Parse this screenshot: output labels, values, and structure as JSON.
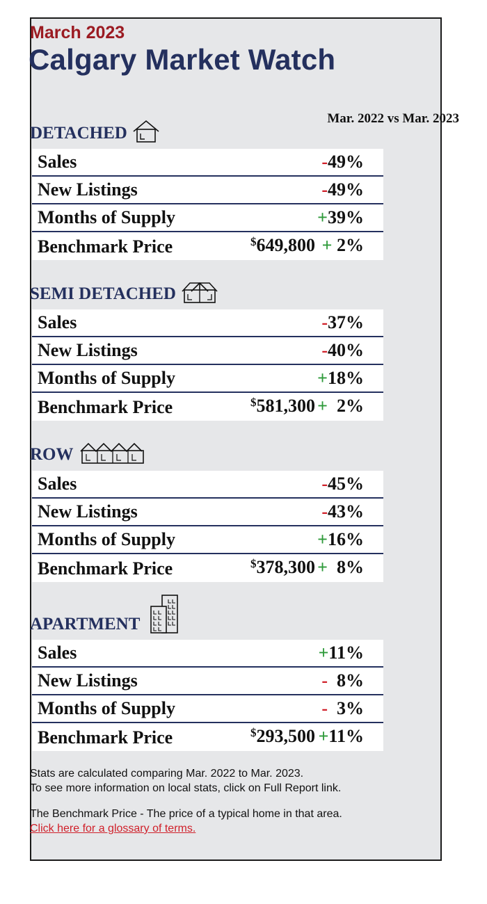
{
  "header": {
    "month": "March 2023",
    "title": "Calgary Market Watch"
  },
  "compare_label": "Mar. 2022 vs Mar. 2023",
  "sections": [
    {
      "name": "DETACHED",
      "icon": "house-icon",
      "rows": [
        {
          "label": "Sales",
          "sign": "-",
          "value": "49%"
        },
        {
          "label": "New Listings",
          "sign": "-",
          "value": "49%"
        },
        {
          "label": "Months of Supply",
          "sign": "+",
          "value": "39%"
        },
        {
          "label": "Benchmark Price",
          "price_symbol": "$",
          "price": "649,800",
          "sign": "+",
          "value": " 2%"
        }
      ]
    },
    {
      "name": "SEMI DETACHED",
      "icon": "semi-detached-icon",
      "rows": [
        {
          "label": "Sales",
          "sign": "-",
          "value": "37%"
        },
        {
          "label": "New Listings",
          "sign": "-",
          "value": "40%"
        },
        {
          "label": "Months of Supply",
          "sign": "+",
          "value": "18%"
        },
        {
          "label": "Benchmark Price",
          "price_symbol": "$",
          "price": "581,300",
          "sign": "+",
          "value": "  2%"
        }
      ]
    },
    {
      "name": "ROW",
      "icon": "row-house-icon",
      "rows": [
        {
          "label": "Sales",
          "sign": "-",
          "value": "45%"
        },
        {
          "label": "New Listings",
          "sign": "-",
          "value": "43%"
        },
        {
          "label": "Months of Supply",
          "sign": "+",
          "value": "16%"
        },
        {
          "label": "Benchmark Price",
          "price_symbol": "$",
          "price": "378,300",
          "sign": "+",
          "value": "  8%"
        }
      ]
    },
    {
      "name": "APARTMENT",
      "icon": "apartment-building-icon",
      "rows": [
        {
          "label": "Sales",
          "sign": "+",
          "value": "11%"
        },
        {
          "label": "New Listings",
          "sign": "-",
          "value": "  8%"
        },
        {
          "label": "Months of Supply",
          "sign": "-",
          "value": "  3%"
        },
        {
          "label": "Benchmark Price",
          "price_symbol": "$",
          "price": "293,500",
          "sign": "+",
          "value": "11%"
        }
      ]
    }
  ],
  "footer": {
    "line1": "Stats are calculated comparing Mar. 2022 to Mar. 2023.",
    "line2": "To see more information on local stats, click on Full Report link.",
    "line3": "The Benchmark Price - The price of a typical home in that area.",
    "link": "Click here for a glossary of terms."
  },
  "colors": {
    "title_navy": "#24305e",
    "month_red": "#9b1b22",
    "negative": "#d0202a",
    "positive": "#2e9a3a",
    "card_bg": "#e6e7e9"
  }
}
